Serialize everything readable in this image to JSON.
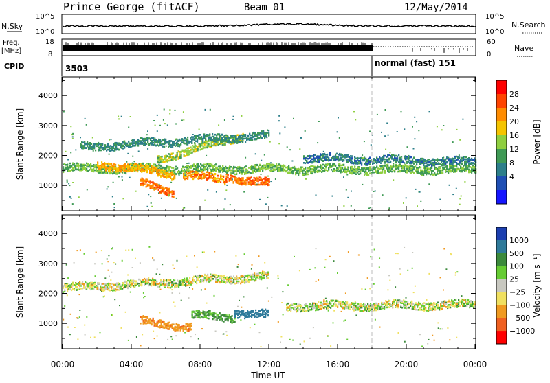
{
  "header": {
    "station": "Prince George (fitACF)",
    "beam": "Beam 01",
    "date": "12/May/2014"
  },
  "noise_panel": {
    "left_label": "N.Sky",
    "right_label": "N.Search",
    "left_ticks": [
      "10^5",
      "10^0"
    ],
    "right_ticks": [
      "10^5",
      "10^0"
    ]
  },
  "freq_panel": {
    "left_label_1": "Freq.",
    "left_label_2": "[MHz]",
    "right_label": "Nave",
    "left_ticks": [
      "18",
      "8"
    ],
    "right_ticks": [
      "60",
      "0"
    ]
  },
  "cpid_panel": {
    "label": "CPID",
    "first": "3503",
    "second": "normal (fast) 151"
  },
  "axes": {
    "ylabel": "Slant Range [km]",
    "yticks": [
      "4000",
      "3000",
      "2000",
      "1000"
    ],
    "xlabel": "Time UT",
    "xticks": [
      "00:00",
      "04:00",
      "08:00",
      "12:00",
      "16:00",
      "20:00",
      "00:00"
    ]
  },
  "power_scale": {
    "label": "Power [dB]",
    "ticks": [
      "28",
      "24",
      "20",
      "16",
      "12",
      "8",
      "4"
    ],
    "colors": [
      "#ff0000",
      "#ff4400",
      "#ff8c00",
      "#f5c400",
      "#8fcf40",
      "#3f9a55",
      "#2d7f8a",
      "#1f4fb4",
      "#1515ff"
    ]
  },
  "velocity_scale": {
    "label": "Velocity [m s⁻¹]",
    "ticks": [
      "1000",
      "500",
      "100",
      "25",
      "−25",
      "−100",
      "−500",
      "−1000"
    ],
    "colors": [
      "#1c3fb0",
      "#2f7a9a",
      "#3c8a3c",
      "#66cc33",
      "#c8c8c0",
      "#f0e060",
      "#f09a20",
      "#f06020",
      "#ff0000"
    ]
  },
  "chart_data": {
    "type": "heatmap",
    "x": {
      "unit": "hours UT",
      "range": [
        0,
        24
      ]
    },
    "y": {
      "unit": "km",
      "range": [
        180,
        4600
      ]
    },
    "scatter_end_time": 18.0,
    "power_bands": [
      {
        "t": [
          0,
          24
        ],
        "r_start": 1600,
        "r_end": 1550,
        "power": 14
      },
      {
        "t": [
          2,
          6.5
        ],
        "r_start": 1750,
        "r_end": 1400,
        "power": 22
      },
      {
        "t": [
          4.5,
          6.5
        ],
        "r_start": 1100,
        "r_end": 800,
        "power": 26
      },
      {
        "t": [
          7,
          9.5
        ],
        "r_start": 1400,
        "r_end": 1200,
        "power": 24
      },
      {
        "t": [
          9.5,
          12
        ],
        "r_start": 1300,
        "r_end": 1100,
        "power": 26
      },
      {
        "t": [
          5.5,
          10.5
        ],
        "r_start": 1900,
        "r_end": 2700,
        "power": 16
      },
      {
        "t": [
          1,
          12
        ],
        "r_start": 2300,
        "r_end": 2700,
        "power": 10
      },
      {
        "t": [
          14,
          24
        ],
        "r_start": 1950,
        "r_end": 1800,
        "power": 8
      }
    ],
    "velocity_bands": [
      {
        "t": [
          0,
          12
        ],
        "r_start": 2200,
        "r_end": 2600,
        "velocity": 0
      },
      {
        "t": [
          13,
          24
        ],
        "r_start": 1600,
        "r_end": 1650,
        "velocity": 0
      },
      {
        "t": [
          4.5,
          7.5
        ],
        "r_start": 1100,
        "r_end": 900,
        "velocity": -400
      },
      {
        "t": [
          7.5,
          10
        ],
        "r_start": 1300,
        "r_end": 1200,
        "velocity": 150
      },
      {
        "t": [
          10,
          12
        ],
        "r_start": 1400,
        "r_end": 1300,
        "velocity": 700
      }
    ]
  }
}
